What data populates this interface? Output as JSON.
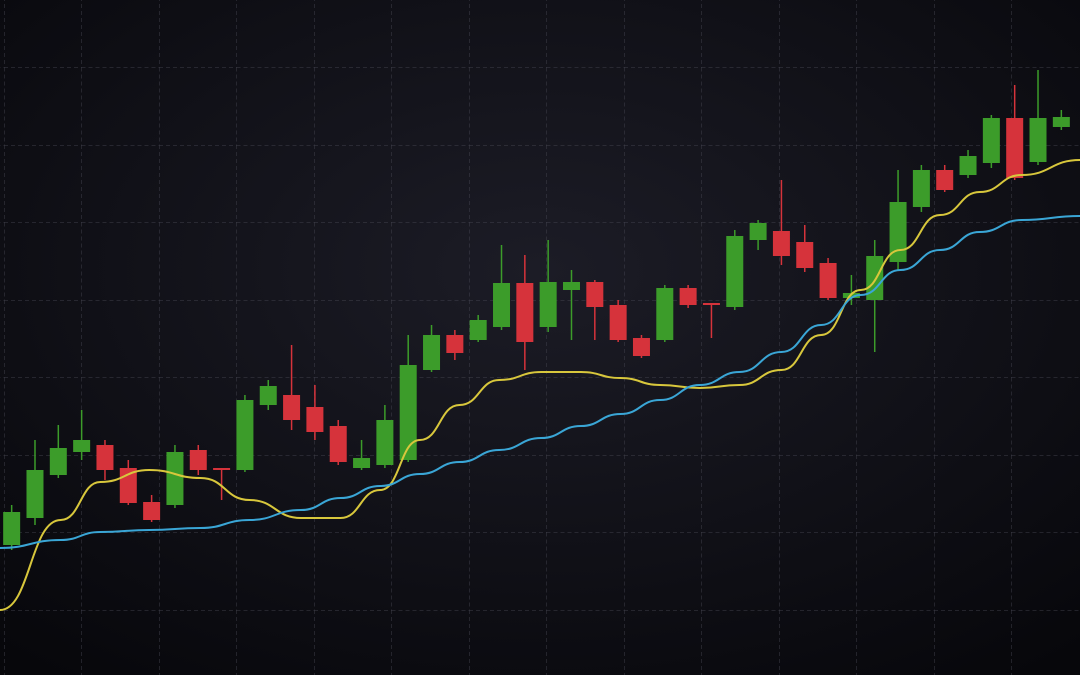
{
  "chart_data": {
    "type": "candlestick",
    "categories": [
      null,
      null,
      null,
      null,
      null,
      null,
      null,
      null,
      null,
      null,
      null,
      null,
      null,
      null,
      null,
      null,
      null,
      null,
      null,
      null,
      null,
      null,
      null,
      null,
      null,
      null,
      null,
      null,
      null,
      null,
      null,
      null,
      null,
      null,
      null,
      null,
      null,
      null,
      null,
      null,
      null,
      null,
      null,
      null,
      null,
      null
    ],
    "open": [
      130,
      157,
      200,
      223,
      230,
      207,
      173,
      170,
      225,
      207,
      205,
      270,
      280,
      268,
      249,
      207,
      210,
      215,
      305,
      340,
      335,
      348,
      392,
      348,
      385,
      393,
      370,
      337,
      335,
      387,
      372,
      368,
      435,
      444,
      433,
      412,
      377,
      375,
      413,
      468,
      505,
      500,
      512,
      557,
      513,
      548
    ],
    "high": [
      170,
      235,
      250,
      265,
      235,
      215,
      180,
      230,
      230,
      207,
      280,
      295,
      330,
      290,
      255,
      235,
      270,
      340,
      350,
      345,
      360,
      430,
      420,
      435,
      405,
      395,
      375,
      340,
      390,
      390,
      372,
      445,
      455,
      495,
      450,
      417,
      400,
      435,
      505,
      510,
      510,
      525,
      560,
      590,
      605,
      565
    ],
    "low": [
      125,
      150,
      197,
      215,
      195,
      170,
      153,
      167,
      200,
      175,
      203,
      265,
      245,
      235,
      210,
      205,
      207,
      213,
      303,
      315,
      333,
      345,
      305,
      343,
      335,
      335,
      333,
      317,
      333,
      367,
      337,
      365,
      425,
      410,
      403,
      375,
      370,
      323,
      405,
      463,
      483,
      497,
      507,
      495,
      510,
      545
    ],
    "close": [
      163,
      205,
      227,
      235,
      205,
      172,
      155,
      223,
      205,
      205,
      275,
      289,
      255,
      243,
      213,
      217,
      255,
      310,
      340,
      322,
      355,
      392,
      333,
      393,
      393,
      368,
      335,
      319,
      387,
      370,
      370,
      439,
      452,
      419,
      407,
      377,
      382,
      419,
      473,
      505,
      485,
      519,
      557,
      497,
      557,
      558
    ],
    "up_color": "#3c9c2a",
    "down_color": "#d6333b",
    "series": [
      {
        "color": "#d8c73c",
        "x": [
          -0.5,
          2.1,
          3.8,
          5.9,
          8.1,
          10.2,
          12.4,
          14.1,
          15.8,
          17.5,
          19.2,
          20.9,
          22.7,
          24.4,
          26.1,
          27.8,
          29.5,
          31.2,
          33,
          34.7,
          36.4,
          38.1,
          39.8,
          41.5,
          43.3,
          45.8
        ],
        "values": [
          65,
          155,
          193,
          205,
          197,
          175,
          157,
          157,
          185,
          235,
          270,
          295,
          303,
          303,
          297,
          290,
          287,
          290,
          305,
          340,
          385,
          425,
          460,
          483,
          500,
          515
        ]
      },
      {
        "color": "#3aa6d6",
        "x": [
          -0.5,
          2.1,
          3.8,
          5.9,
          8.1,
          10.2,
          12.4,
          14.1,
          15.8,
          17.5,
          19.2,
          20.9,
          22.7,
          24.4,
          26.1,
          27.8,
          29.5,
          31.2,
          33,
          34.7,
          36.4,
          38.1,
          39.8,
          41.5,
          43.3,
          45.8
        ],
        "values": [
          127,
          135,
          143,
          145,
          147,
          155,
          165,
          177,
          189,
          201,
          213,
          225,
          237,
          249,
          261,
          275,
          290,
          303,
          323,
          350,
          380,
          405,
          425,
          443,
          455,
          459
        ]
      }
    ],
    "xlim": [
      -0.5,
      45.8
    ],
    "ylim": [
      0,
      675
    ],
    "grid": true
  }
}
